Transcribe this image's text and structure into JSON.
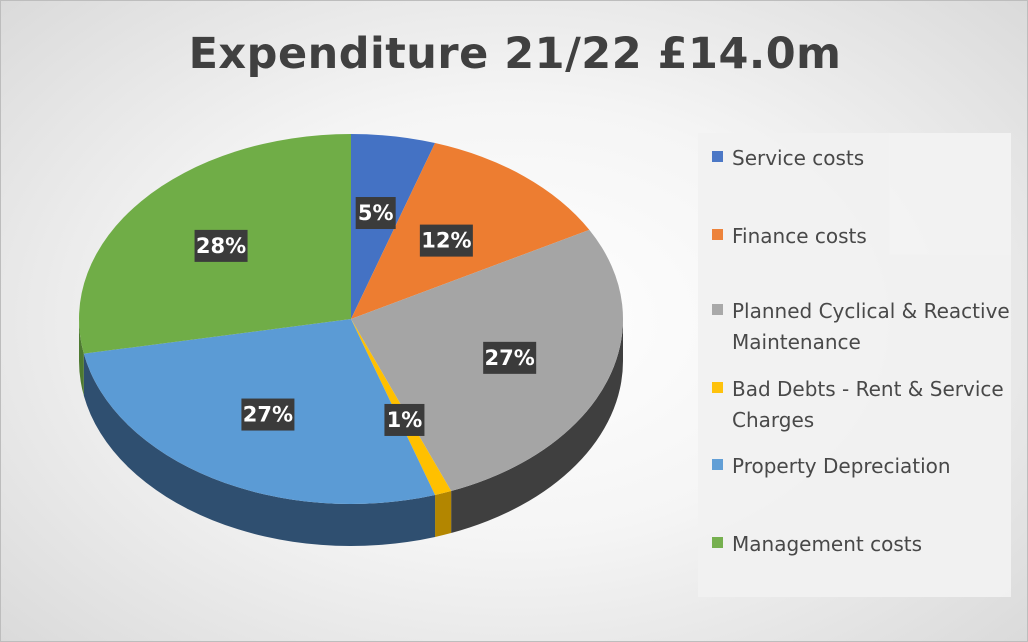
{
  "chart_data": {
    "type": "pie",
    "title": "Expenditure 21/22 £14.0m",
    "categories": [
      "Service costs",
      "Finance costs",
      "Planned Cyclical & Reactive Maintenance",
      "Bad Debts - Rent & Service Charges",
      "Property Depreciation",
      "Management costs"
    ],
    "values": [
      5,
      12,
      27,
      1,
      27,
      28
    ],
    "data_labels": [
      "5%",
      "12%",
      "27%",
      "1%",
      "27%",
      "28%"
    ],
    "colors": [
      "#4472C4",
      "#ED7D31",
      "#A5A5A5",
      "#FFC000",
      "#5B9BD5",
      "#70AD47"
    ],
    "side_colors": [
      "#2E4F8A",
      "#A65720",
      "#3F3F3F",
      "#B38600",
      "#2F4F70",
      "#4E7A31"
    ],
    "legend_position": "right",
    "style": "3d"
  }
}
